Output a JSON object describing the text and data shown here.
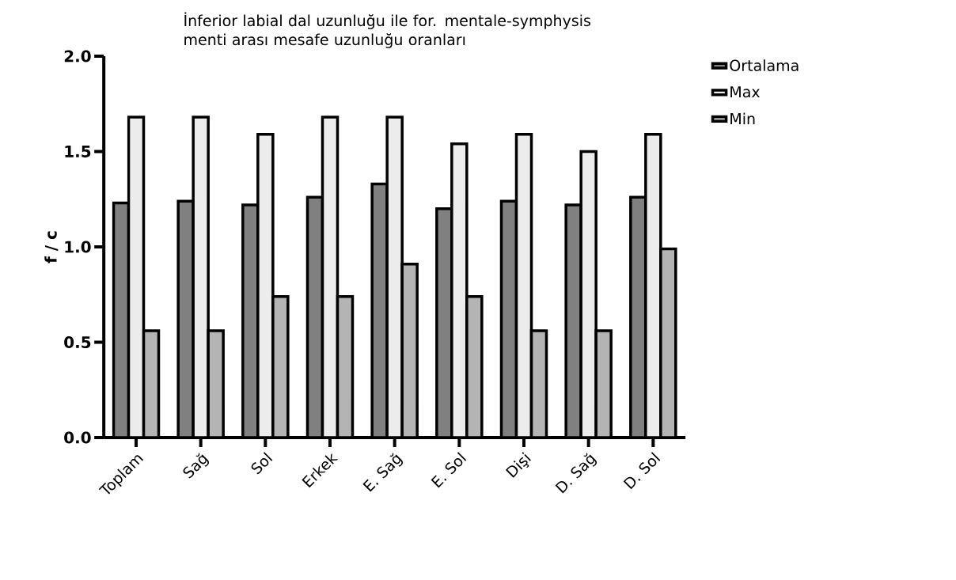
{
  "chart_data": {
    "type": "bar",
    "title": "İnferior labial dal uzunluğu ile for. mentale-symphysis menti arası mesafe uzunluğu oranları",
    "ylabel": "f / c",
    "categories": [
      "Toplam",
      "Sağ",
      "Sol",
      "Erkek",
      "E. Sağ",
      "E. Sol",
      "Dişi",
      "D. Sağ",
      "D. Sol"
    ],
    "series": [
      {
        "name": "Ortalama",
        "color": "#808080",
        "values": [
          1.23,
          1.24,
          1.22,
          1.26,
          1.33,
          1.2,
          1.24,
          1.22,
          1.26
        ]
      },
      {
        "name": "Max",
        "color": "#ececec",
        "values": [
          1.68,
          1.68,
          1.59,
          1.68,
          1.68,
          1.54,
          1.59,
          1.5,
          1.59
        ]
      },
      {
        "name": "Min",
        "color": "#b4b4b4",
        "values": [
          0.56,
          0.56,
          0.74,
          0.74,
          0.91,
          0.74,
          0.56,
          0.56,
          0.99
        ]
      }
    ],
    "ylim": [
      0,
      2.0
    ],
    "yticks": [
      {
        "value": 0,
        "label": "0.0"
      },
      {
        "value": 0.5,
        "label": "0.5"
      },
      {
        "value": 1.0,
        "label": "1.0"
      },
      {
        "value": 1.5,
        "label": "1.5"
      },
      {
        "value": 2.0,
        "label": "2.0"
      }
    ],
    "legend": "top right"
  }
}
